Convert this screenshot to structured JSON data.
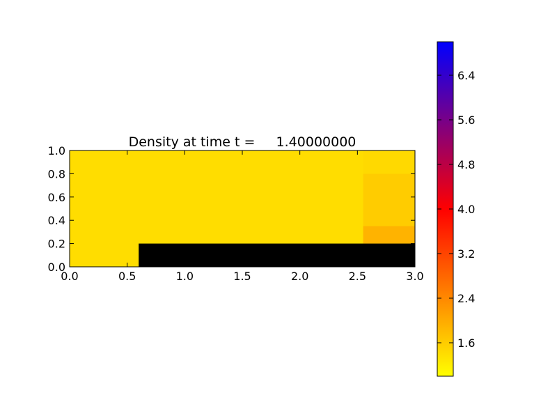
{
  "chart_data": {
    "type": "heatmap",
    "title": "Density at time t =     1.40000000",
    "xlabel": "",
    "ylabel": "",
    "xlim": [
      0.0,
      3.0
    ],
    "ylim": [
      0.0,
      1.0
    ],
    "x_ticks": [
      "0.0",
      "0.5",
      "1.0",
      "1.5",
      "2.0",
      "2.5",
      "3.0"
    ],
    "y_ticks": [
      "0.0",
      "0.2",
      "0.4",
      "0.6",
      "0.8",
      "1.0"
    ],
    "colorbar": {
      "range": [
        1.0,
        7.0
      ],
      "ticks": [
        "1.6",
        "2.4",
        "3.2",
        "4.0",
        "4.8",
        "5.6",
        "6.4"
      ],
      "colors": [
        "#ffff00",
        "#ff8000",
        "#ff0000",
        "#800080",
        "#0000ff"
      ]
    },
    "field": {
      "ambient_density": 1.4,
      "shock_front_x": 2.55,
      "shock_regions": [
        {
          "y_range": [
            0.2,
            0.35
          ],
          "density": 1.9
        },
        {
          "y_range": [
            0.35,
            0.8
          ],
          "density": 1.6
        },
        {
          "y_range": [
            0.8,
            1.0
          ],
          "density": 1.45
        }
      ]
    },
    "obstacle": {
      "description": "step",
      "x_range": [
        0.6,
        3.0
      ],
      "y_range": [
        0.0,
        0.2
      ],
      "color": "#000000"
    }
  }
}
